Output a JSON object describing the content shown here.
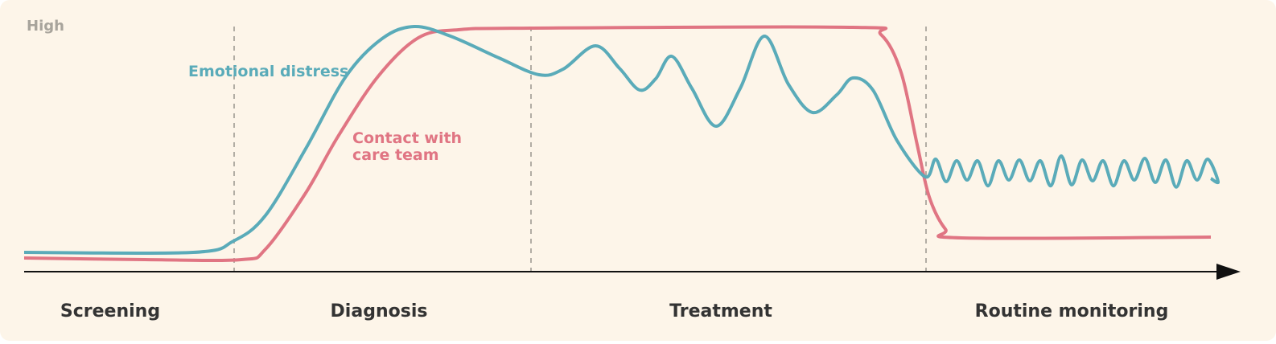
{
  "axis_label": "High",
  "curves": [
    {
      "label": "Emotional distress"
    },
    {
      "label_lines": [
        "Contact with",
        "care team"
      ]
    }
  ],
  "phases": [
    "Screening",
    "Diagnosis",
    "Treatment",
    "Routine monitoring"
  ]
}
